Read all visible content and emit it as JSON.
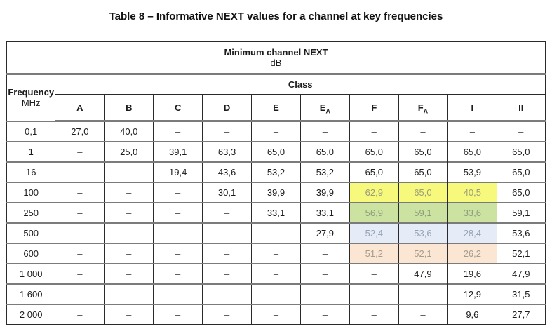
{
  "title": "Table 8 – Informative NEXT values for a channel at key frequencies",
  "table": {
    "top_header": "Minimum channel NEXT",
    "unit": "dB",
    "frequency_label": "Frequency",
    "frequency_unit": "MHz",
    "class_label": "Class",
    "dash": "–",
    "columns": [
      {
        "base": "A"
      },
      {
        "base": "B"
      },
      {
        "base": "C"
      },
      {
        "base": "D"
      },
      {
        "base": "E"
      },
      {
        "base": "E",
        "sub": "A"
      },
      {
        "base": "F"
      },
      {
        "base": "F",
        "sub": "A"
      },
      {
        "base": "I"
      },
      {
        "base": "II"
      }
    ],
    "highlight_colors": {
      "yellow": "#f7f97d",
      "green": "#cbe2a1",
      "blue": "#e6ecf7",
      "peach": "#fae6d2"
    },
    "rows": [
      {
        "frequency": "0,1",
        "values": [
          "27,0",
          "40,0",
          "–",
          "–",
          "–",
          "–",
          "–",
          "–",
          "–",
          "–"
        ]
      },
      {
        "frequency": "1",
        "values": [
          "–",
          "25,0",
          "39,1",
          "63,3",
          "65,0",
          "65,0",
          "65,0",
          "65,0",
          "65,0",
          "65,0"
        ]
      },
      {
        "frequency": "16",
        "values": [
          "–",
          "–",
          "19,4",
          "43,6",
          "53,2",
          "53,2",
          "65,0",
          "65,0",
          "53,9",
          "65,0"
        ]
      },
      {
        "frequency": "100",
        "values": [
          "–",
          "–",
          "–",
          "30,1",
          "39,9",
          "39,9",
          "62,9",
          "65,0",
          "40,5",
          "65,0"
        ],
        "highlight": {
          "cols": [
            6,
            7,
            8
          ],
          "color": "#f7f97d",
          "text": "#9b9d7c",
          "name": "yellow"
        }
      },
      {
        "frequency": "250",
        "values": [
          "–",
          "–",
          "–",
          "–",
          "33,1",
          "33,1",
          "56,9",
          "59,1",
          "33,6",
          "59,1"
        ],
        "highlight": {
          "cols": [
            6,
            7,
            8
          ],
          "color": "#cbe2a1",
          "text": "#8a9c7d",
          "name": "green"
        }
      },
      {
        "frequency": "500",
        "values": [
          "–",
          "–",
          "–",
          "–",
          "–",
          "27,9",
          "52,4",
          "53,6",
          "28,4",
          "53,6"
        ],
        "highlight": {
          "cols": [
            6,
            7,
            8
          ],
          "color": "#e6ecf7",
          "text": "#95a1b3",
          "name": "blue"
        }
      },
      {
        "frequency": "600",
        "values": [
          "–",
          "–",
          "–",
          "–",
          "–",
          "–",
          "51,2",
          "52,1",
          "26,2",
          "52,1"
        ],
        "highlight": {
          "cols": [
            6,
            7,
            8
          ],
          "color": "#fae6d2",
          "text": "#a69b8d",
          "name": "peach"
        }
      },
      {
        "frequency": "1 000",
        "values": [
          "–",
          "–",
          "–",
          "–",
          "–",
          "–",
          "–",
          "47,9",
          "19,6",
          "47,9"
        ]
      },
      {
        "frequency": "1 600",
        "values": [
          "–",
          "–",
          "–",
          "–",
          "–",
          "–",
          "–",
          "–",
          "12,9",
          "31,5"
        ]
      },
      {
        "frequency": "2 000",
        "values": [
          "–",
          "–",
          "–",
          "–",
          "–",
          "–",
          "–",
          "–",
          "9,6",
          "27,7"
        ]
      }
    ]
  }
}
